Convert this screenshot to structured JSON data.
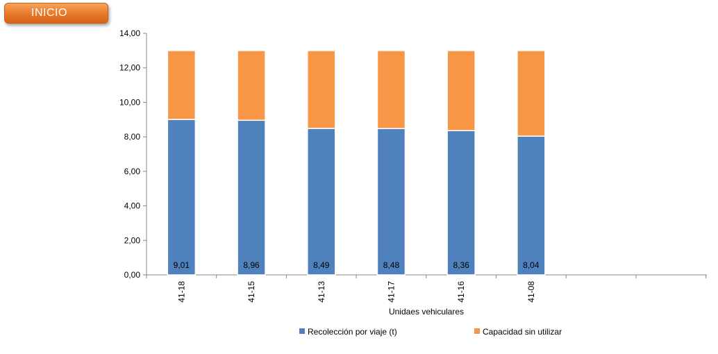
{
  "nav": {
    "inicio_label": "INICIO"
  },
  "colors": {
    "series1": "#4f81bd",
    "series2": "#f79646",
    "button": "#e8772a"
  },
  "chart_data": {
    "type": "bar",
    "stacked": true,
    "title": "",
    "xlabel": "Unidaes vehiculares",
    "ylabel": "",
    "ylim": [
      0,
      14
    ],
    "yticks": [
      0,
      2,
      4,
      6,
      8,
      10,
      12,
      14
    ],
    "ytick_labels": [
      "0,00",
      "2,00",
      "4,00",
      "6,00",
      "8,00",
      "10,00",
      "12,00",
      "14,00"
    ],
    "categories": [
      "41-18",
      "41-15",
      "41-13",
      "41-17",
      "41-16",
      "41-08"
    ],
    "series": [
      {
        "name": "Recolección por viaje (t)",
        "values": [
          9.01,
          8.96,
          8.49,
          8.48,
          8.36,
          8.04
        ],
        "labels": [
          "9,01",
          "8,96",
          "8,49",
          "8,48",
          "8,36",
          "8,04"
        ],
        "color": "#4f81bd"
      },
      {
        "name": "Capacidad sin utilizar",
        "values": [
          3.99,
          4.04,
          4.51,
          4.52,
          4.64,
          4.96
        ],
        "color": "#f79646"
      }
    ],
    "grid": false,
    "legend": "bottom"
  }
}
